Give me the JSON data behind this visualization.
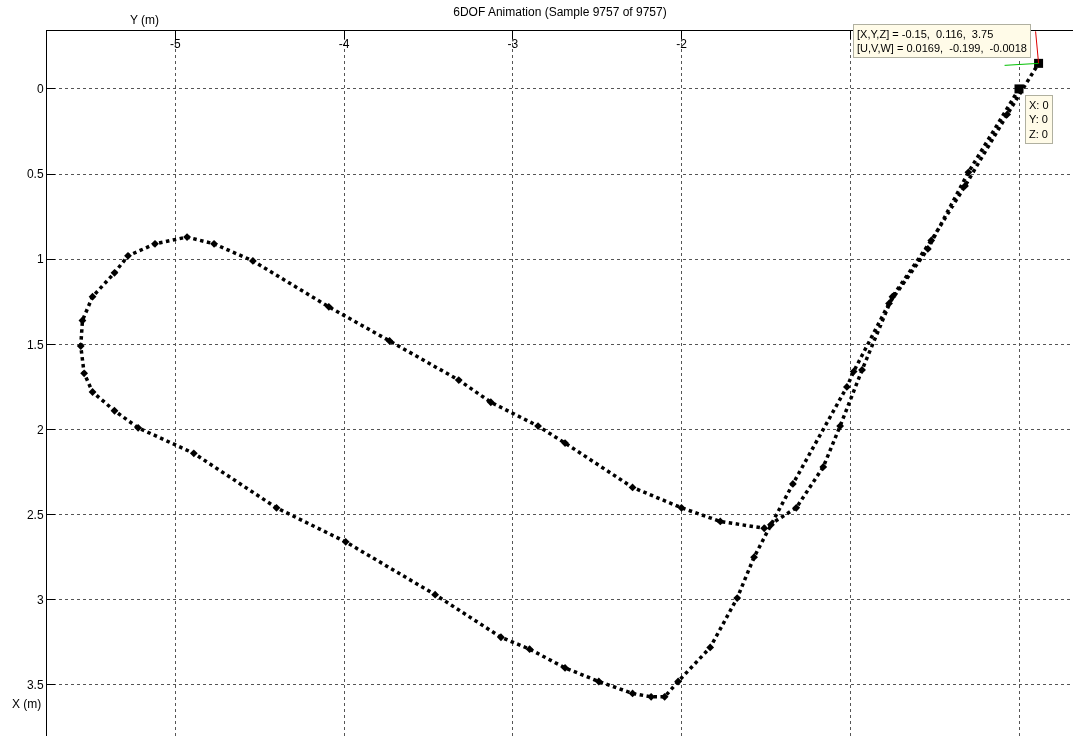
{
  "chart_data": {
    "type": "scatter",
    "title": "6DOF Animation (Sample 9757 of 9757)",
    "xlabel": "Y (m)",
    "ylabel": "X (m)",
    "xlim": [
      -5.76,
      0.32
    ],
    "ylim": [
      3.8,
      -0.34
    ],
    "xticks": [
      -5,
      -4,
      -3,
      -2,
      {
        "value": -1,
        "label": null
      },
      {
        "value": 0,
        "label": null
      }
    ],
    "yticks": [
      0,
      0.5,
      1,
      1.5,
      2,
      2.5,
      3,
      3.5
    ],
    "grid": true,
    "marker": "diamond",
    "series": [
      {
        "color": "#000000",
        "type": "line",
        "line_style": "dotted",
        "x": [
          0,
          -0.3,
          -0.54,
          -0.77,
          -0.98,
          -1.02,
          -1.34,
          -1.47,
          -1.57,
          -1.67,
          -1.83,
          -2.02,
          -2.1,
          -2.18,
          -2.29,
          -2.49,
          -2.69,
          -2.9,
          -3.07,
          -3.46,
          -3.99,
          -4.4,
          -4.89,
          -5.22,
          -5.36,
          -5.49,
          -5.54,
          -5.56,
          -5.55,
          -5.49,
          -5.36,
          -5.28,
          -5.12,
          -4.93,
          -4.77,
          -4.54,
          -4.09,
          -3.73,
          -3.32,
          -3.13,
          -2.85,
          -2.69,
          -2.29,
          -2.0,
          -1.77,
          -1.51,
          -1.32,
          -1.16,
          -1.06,
          -0.93,
          -0.75,
          -0.52,
          -0.32,
          -0.07,
          0.116
        ],
        "values": [
          0,
          0.49,
          0.94,
          1.26,
          1.66,
          1.75,
          2.32,
          2.56,
          2.75,
          2.99,
          3.28,
          3.48,
          3.57,
          3.57,
          3.55,
          3.48,
          3.4,
          3.29,
          3.22,
          2.97,
          2.66,
          2.46,
          2.14,
          1.99,
          1.89,
          1.78,
          1.67,
          1.51,
          1.36,
          1.22,
          1.08,
          0.98,
          0.91,
          0.87,
          0.91,
          1.01,
          1.28,
          1.48,
          1.71,
          1.84,
          1.98,
          2.08,
          2.34,
          2.46,
          2.54,
          2.58,
          2.46,
          2.22,
          1.98,
          1.65,
          1.22,
          0.89,
          0.57,
          0.15,
          -0.15
        ]
      },
      {
        "color": "#000000",
        "marker": "square",
        "x": [
          0,
          0.116
        ],
        "values": [
          0,
          -0.15
        ]
      }
    ],
    "annotations": [
      {
        "text": "[X,Y,Z] = -0.15,  0.116,  3.75\n[U,V,W] = 0.0169,  -0.199,  -0.0018",
        "x": 0.116,
        "y": -0.15
      },
      {
        "text": "X: 0\nY: 0\nZ: 0",
        "x": 0,
        "y": 0
      }
    ]
  }
}
